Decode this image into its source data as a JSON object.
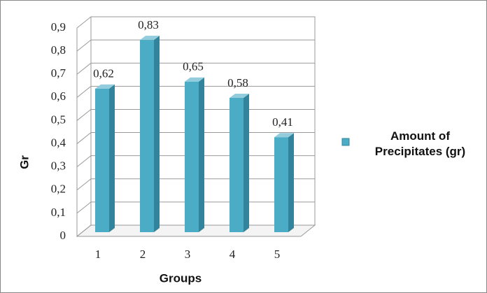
{
  "chart_data": {
    "type": "bar3d",
    "x_label": "Groups",
    "y_label": "Gr",
    "categories": [
      "1",
      "2",
      "3",
      "4",
      "5"
    ],
    "series": [
      {
        "name": "Amount of Precipitates (gr)",
        "color": "#4bacc6",
        "values": [
          0.62,
          0.83,
          0.65,
          0.58,
          0.41
        ],
        "value_labels": [
          "0,62",
          "0,83",
          "0,65",
          "0,58",
          "0,41"
        ]
      }
    ],
    "ylim": [
      0,
      0.9
    ],
    "yticks": [
      {
        "value": 0,
        "label": "0"
      },
      {
        "value": 0.1,
        "label": "0,1"
      },
      {
        "value": 0.2,
        "label": "0,2"
      },
      {
        "value": 0.3,
        "label": "0,3"
      },
      {
        "value": 0.4,
        "label": "0,4"
      },
      {
        "value": 0.5,
        "label": "0,5"
      },
      {
        "value": 0.6,
        "label": "0,6"
      },
      {
        "value": 0.7,
        "label": "0,7"
      },
      {
        "value": 0.8,
        "label": "0,8"
      },
      {
        "value": 0.9,
        "label": "0,9"
      }
    ],
    "grid": true
  }
}
